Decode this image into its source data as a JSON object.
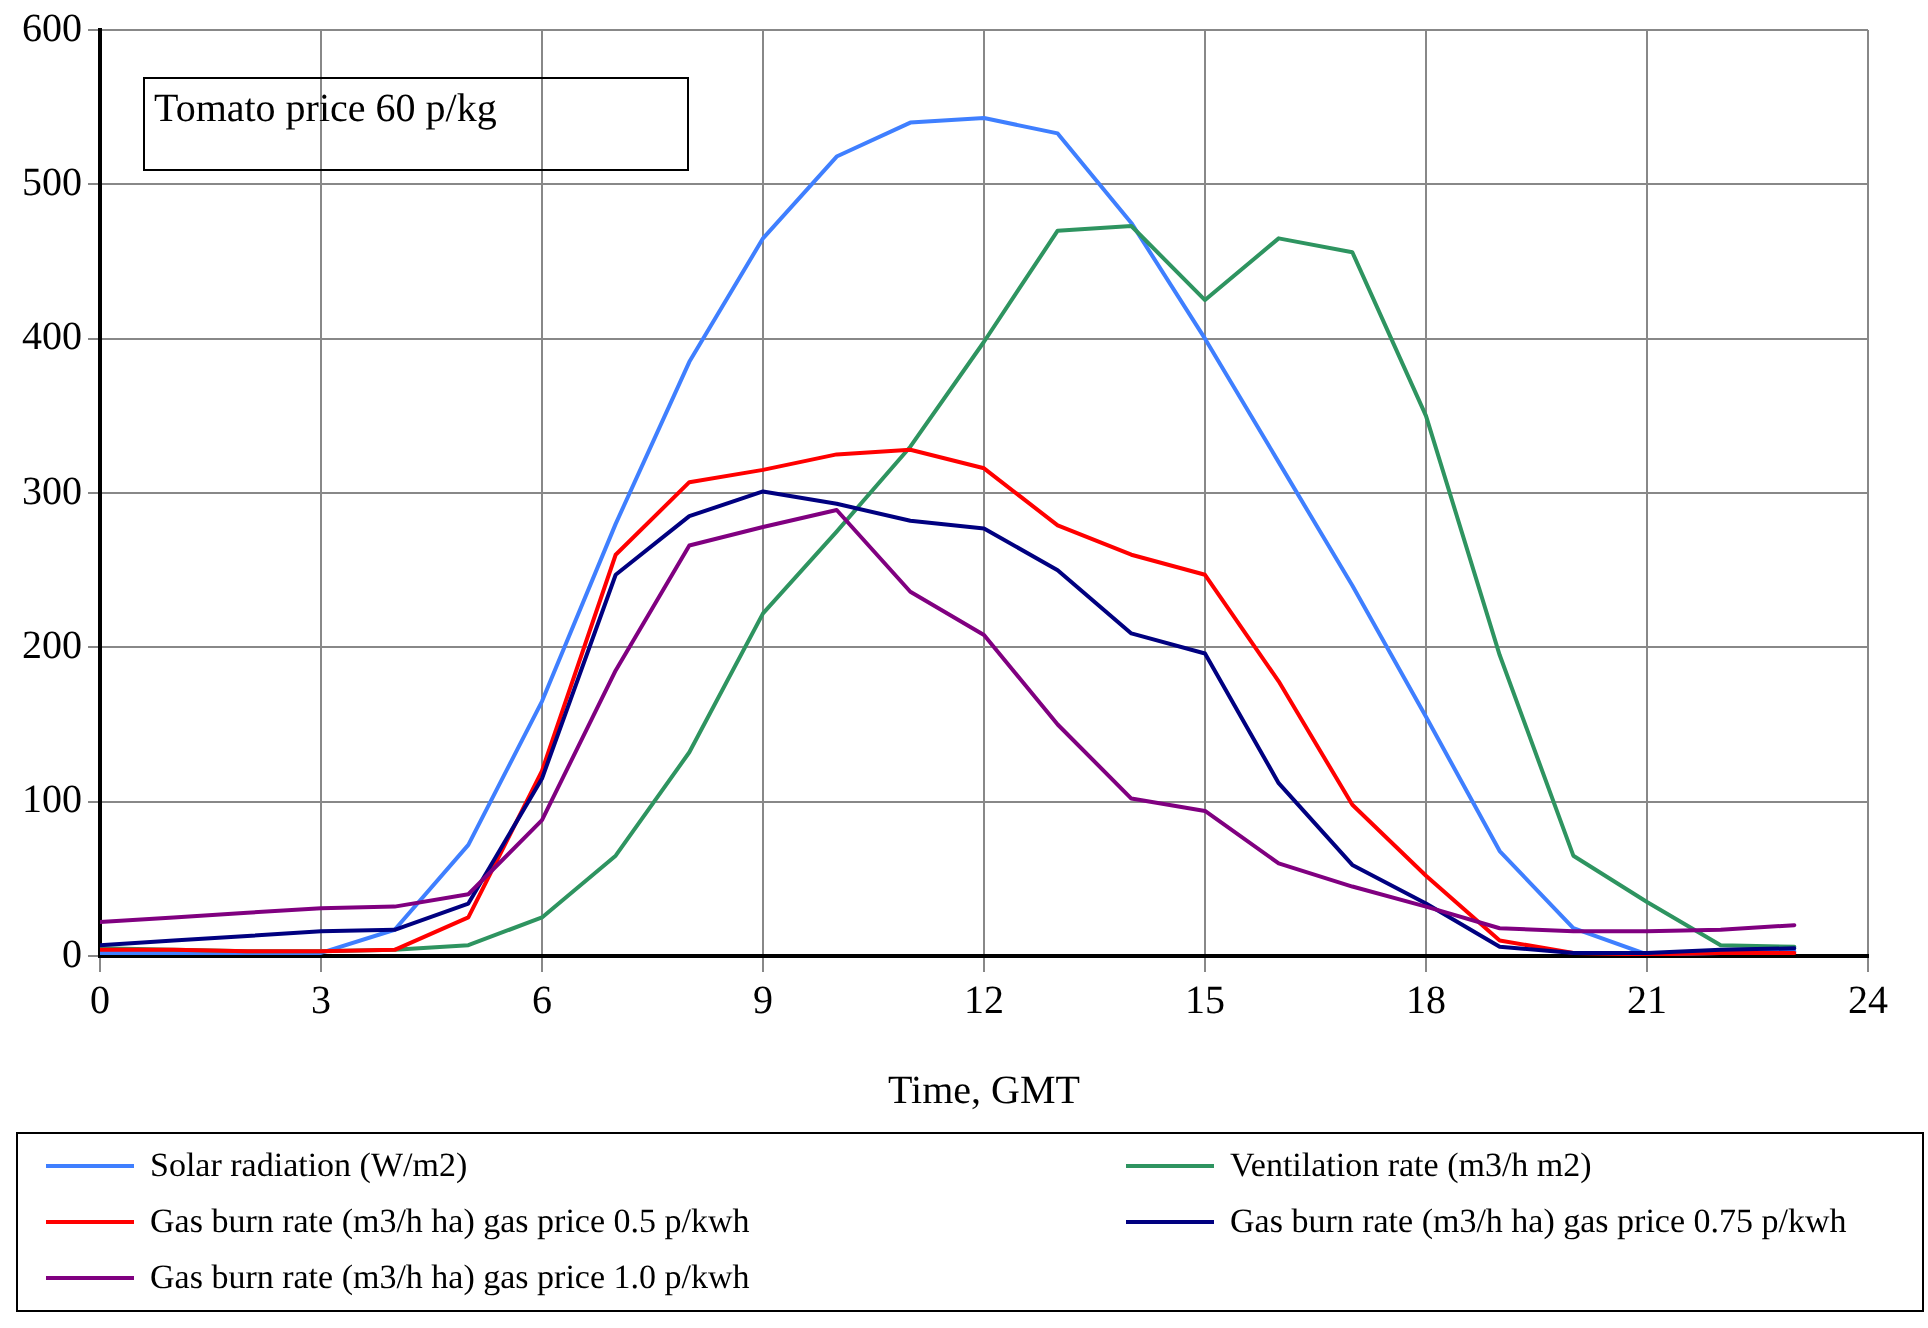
{
  "chart_data": {
    "type": "line",
    "xlabel": "Time, GMT",
    "annotations": [
      "Tomato price 60 p/kg"
    ],
    "x": [
      0,
      1,
      2,
      3,
      4,
      5,
      6,
      7,
      8,
      9,
      10,
      11,
      12,
      13,
      14,
      15,
      16,
      17,
      18,
      19,
      20,
      21,
      22,
      23
    ],
    "xlim": [
      0,
      24
    ],
    "xticks": [
      0,
      3,
      6,
      9,
      12,
      15,
      18,
      21,
      24
    ],
    "ylim": [
      0,
      600
    ],
    "yticks": [
      0,
      100,
      200,
      300,
      400,
      500,
      600
    ],
    "grid": true,
    "legend": "bottom",
    "marker": "none",
    "line_style": "solid",
    "series": [
      {
        "name": "Solar radiation (W/m2)",
        "color": "#3f7fff",
        "values": [
          2,
          2,
          2,
          2,
          17,
          72,
          165,
          280,
          385,
          465,
          518,
          540,
          543,
          533,
          475,
          400,
          320,
          240,
          155,
          68,
          18,
          1,
          2,
          3
        ]
      },
      {
        "name": "Ventilation rate (m3/h m2)",
        "color": "#2e9460",
        "values": [
          5,
          4,
          3,
          3,
          4,
          7,
          25,
          65,
          132,
          222,
          275,
          330,
          398,
          470,
          473,
          425,
          465,
          456,
          350,
          195,
          65,
          35,
          7,
          6
        ]
      },
      {
        "name": "Gas burn rate (m3/h ha) gas price 0.5 p/kwh",
        "color": "#ff0000",
        "values": [
          4,
          4,
          3,
          3,
          4,
          25,
          120,
          260,
          307,
          315,
          325,
          328,
          316,
          279,
          260,
          247,
          178,
          98,
          52,
          10,
          2,
          1,
          2,
          2
        ]
      },
      {
        "name": "Gas burn rate (m3/h ha) gas price 0.75 p/kwh",
        "color": "#000080",
        "values": [
          7,
          10,
          13,
          16,
          17,
          34,
          115,
          247,
          285,
          301,
          293,
          282,
          277,
          250,
          209,
          196,
          112,
          59,
          34,
          6,
          2,
          2,
          4,
          5
        ]
      },
      {
        "name": "Gas burn rate (m3/h ha) gas price 1.0 p/kwh",
        "color": "#800080",
        "values": [
          22,
          25,
          28,
          31,
          32,
          40,
          88,
          185,
          266,
          278,
          289,
          236,
          208,
          150,
          102,
          94,
          60,
          45,
          32,
          18,
          16,
          16,
          17,
          20
        ]
      }
    ]
  }
}
